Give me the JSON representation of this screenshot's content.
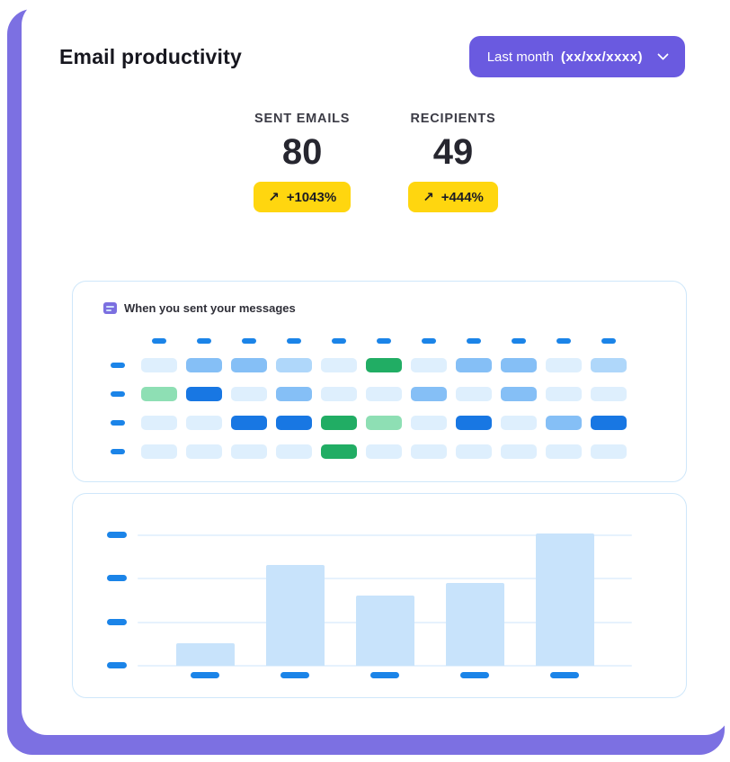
{
  "theme": {
    "background_purple": "#7C70E2",
    "accent_purple": "#6A5AE0",
    "badge_yellow": "#FFD60F",
    "dash_blue": "#1B84E8",
    "card_border": "#CFE7FA",
    "bar_fill": "#C8E3FB"
  },
  "header": {
    "title": "Email productivity",
    "period_button": {
      "label": "Last month",
      "value": "(xx/xx/xxxx)"
    }
  },
  "stats": [
    {
      "label": "SENT EMAILS",
      "value": "80",
      "trend_icon": "↗",
      "trend": "+1043%"
    },
    {
      "label": "RECIPIENTS",
      "value": "49",
      "trend_icon": "↗",
      "trend": "+444%"
    }
  ],
  "heatmap": {
    "title": "When you sent your messages",
    "col_count": 11,
    "row_count": 4,
    "colors": {
      "c0": "#DEEFFD",
      "c1": "#AFD7FA",
      "c2": "#85BFF6",
      "c3": "#1877E3",
      "g": "#21AD64",
      "lg": "#8EDFB4"
    },
    "cells": [
      [
        "c0",
        "c2",
        "c2",
        "c1",
        "c0",
        "g",
        "c0",
        "c2",
        "c2",
        "c0",
        "c1"
      ],
      [
        "lg",
        "c3",
        "c0",
        "c2",
        "c0",
        "c0",
        "c2",
        "c0",
        "c2",
        "c0",
        "c0"
      ],
      [
        "c0",
        "c0",
        "c3",
        "c3",
        "g",
        "lg",
        "c0",
        "c3",
        "c0",
        "c2",
        "c3"
      ],
      [
        "c0",
        "c0",
        "c0",
        "c0",
        "g",
        "c0",
        "c0",
        "c0",
        "c0",
        "c0",
        "c0"
      ]
    ]
  },
  "chart_data": {
    "type": "bar",
    "title": "",
    "categories": [
      "",
      "",
      "",
      "",
      ""
    ],
    "values": [
      25,
      112,
      78,
      92,
      147
    ],
    "ylim": [
      0,
      150
    ],
    "y_tick_count": 4,
    "grid": true,
    "note_labels_redacted": true
  }
}
